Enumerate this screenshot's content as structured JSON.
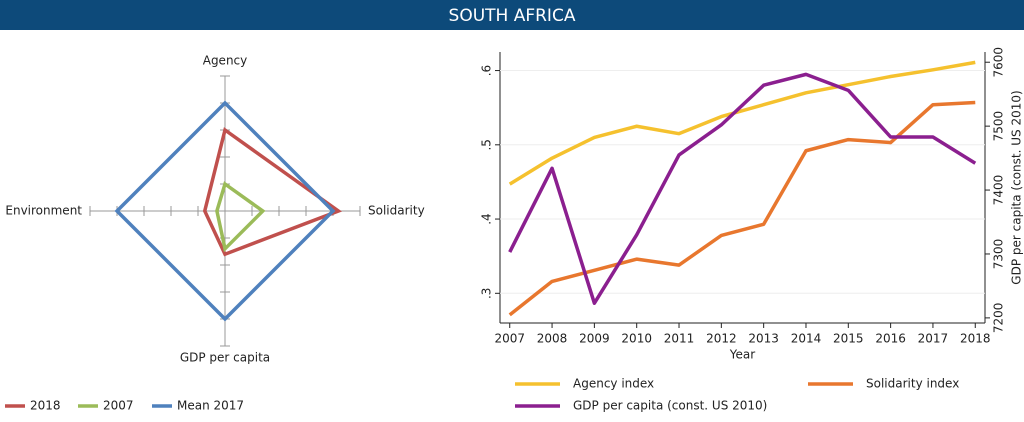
{
  "header": {
    "title": "SOUTH AFRICA"
  },
  "chart_data": [
    {
      "type": "radar",
      "categories": [
        "Agency",
        "Solidarity",
        "GDP per capita",
        "Environment"
      ],
      "rlim": [
        0,
        5
      ],
      "rticks": [
        1,
        2,
        3,
        4,
        5
      ],
      "series": [
        {
          "name": "2018",
          "color": "#c0504d",
          "values": [
            3,
            4.2,
            1.6,
            0.75
          ]
        },
        {
          "name": "2007",
          "color": "#9bbb59",
          "values": [
            1,
            1.4,
            1.4,
            0.3
          ]
        },
        {
          "name": "Mean 2017",
          "color": "#4f81bd",
          "values": [
            4,
            4,
            4,
            4
          ]
        }
      ]
    },
    {
      "type": "line",
      "x_label": "Year",
      "y2_label": "GDP per capita (const. US 2010)",
      "x": [
        2007,
        2008,
        2009,
        2010,
        2011,
        2012,
        2013,
        2014,
        2015,
        2016,
        2017,
        2018
      ],
      "xlim": [
        2006.77,
        2018.23
      ],
      "xticks": [
        2007,
        2008,
        2009,
        2010,
        2011,
        2012,
        2013,
        2014,
        2015,
        2016,
        2017,
        2018
      ],
      "ylim": [
        0.26,
        0.625
      ],
      "yticks": [
        {
          "value": 0.3,
          "label": ".3"
        },
        {
          "value": 0.4,
          "label": ".4"
        },
        {
          "value": 0.5,
          "label": ".5"
        },
        {
          "value": 0.6,
          "label": ".6"
        }
      ],
      "y2lim": [
        7192,
        7616
      ],
      "y2ticks": [
        7200,
        7300,
        7400,
        7500,
        7600
      ],
      "grid": true,
      "series": [
        {
          "name": "Agency index",
          "color": "#f5c12e",
          "values": [
            0.447,
            0.482,
            0.51,
            0.525,
            0.515,
            0.538,
            0.554,
            0.57,
            0.581,
            0.592,
            0.601,
            0.611
          ]
        },
        {
          "name": "Solidarity index",
          "color": "#e8772e",
          "values": [
            0.271,
            0.316,
            0.331,
            0.346,
            0.338,
            0.378,
            0.393,
            0.492,
            0.507,
            0.503,
            0.554,
            0.557
          ]
        },
        {
          "name": "GDP per capita (const. US 2010)",
          "color": "#8b1f8f",
          "axis": "y2",
          "values": [
            7303,
            7434,
            7223,
            7330,
            7455,
            7502,
            7564,
            7581,
            7556,
            7483,
            7483,
            7442
          ]
        }
      ]
    }
  ]
}
